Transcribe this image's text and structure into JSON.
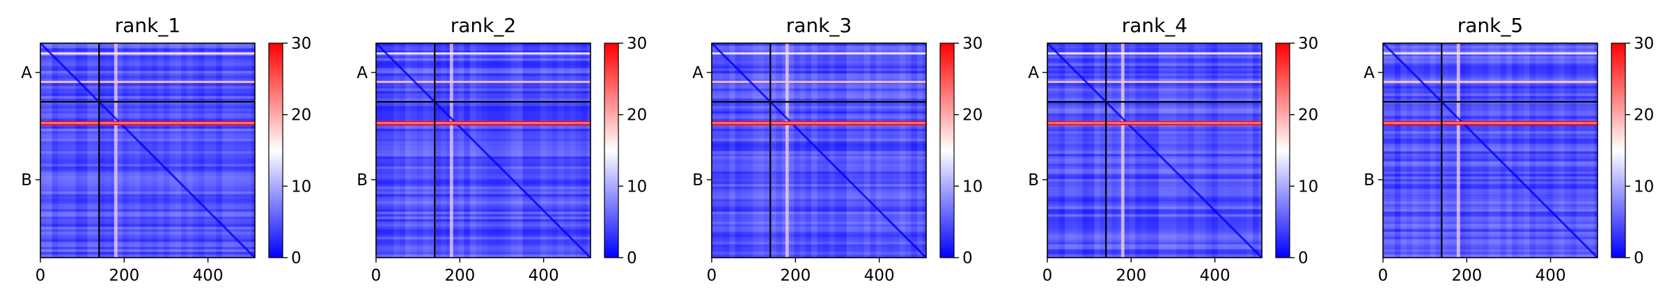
{
  "chart_data": [
    {
      "type": "heatmap",
      "title": "rank_1",
      "xlabel": "",
      "ylabel": "",
      "xlim": [
        0,
        512
      ],
      "x_ticks": [
        0,
        200,
        400
      ],
      "y_tick_labels": [
        "A",
        "B"
      ],
      "region_split": 140,
      "colorbar": {
        "min": 0,
        "max": 30,
        "ticks": [
          0,
          10,
          20,
          30
        ],
        "colormap": "bwr"
      },
      "hot_band_value": 29,
      "grid": false
    },
    {
      "type": "heatmap",
      "title": "rank_2",
      "xlabel": "",
      "ylabel": "",
      "xlim": [
        0,
        512
      ],
      "x_ticks": [
        0,
        200,
        400
      ],
      "y_tick_labels": [
        "A",
        "B"
      ],
      "region_split": 140,
      "colorbar": {
        "min": 0,
        "max": 30,
        "ticks": [
          0,
          10,
          20,
          30
        ],
        "colormap": "bwr"
      },
      "hot_band_value": 29,
      "grid": false
    },
    {
      "type": "heatmap",
      "title": "rank_3",
      "xlabel": "",
      "ylabel": "",
      "xlim": [
        0,
        512
      ],
      "x_ticks": [
        0,
        200,
        400
      ],
      "y_tick_labels": [
        "A",
        "B"
      ],
      "region_split": 140,
      "colorbar": {
        "min": 0,
        "max": 30,
        "ticks": [
          0,
          10,
          20,
          30
        ],
        "colormap": "bwr"
      },
      "hot_band_value": 29,
      "grid": false
    },
    {
      "type": "heatmap",
      "title": "rank_4",
      "xlabel": "",
      "ylabel": "",
      "xlim": [
        0,
        512
      ],
      "x_ticks": [
        0,
        200,
        400
      ],
      "y_tick_labels": [
        "A",
        "B"
      ],
      "region_split": 140,
      "colorbar": {
        "min": 0,
        "max": 30,
        "ticks": [
          0,
          10,
          20,
          30
        ],
        "colormap": "bwr"
      },
      "hot_band_value": 29,
      "grid": false
    },
    {
      "type": "heatmap",
      "title": "rank_5",
      "xlabel": "",
      "ylabel": "",
      "xlim": [
        0,
        512
      ],
      "x_ticks": [
        0,
        200,
        400
      ],
      "y_tick_labels": [
        "A",
        "B"
      ],
      "region_split": 140,
      "colorbar": {
        "min": 0,
        "max": 30,
        "ticks": [
          0,
          10,
          20,
          30
        ],
        "colormap": "bwr"
      },
      "hot_band_value": 29,
      "grid": false
    }
  ]
}
